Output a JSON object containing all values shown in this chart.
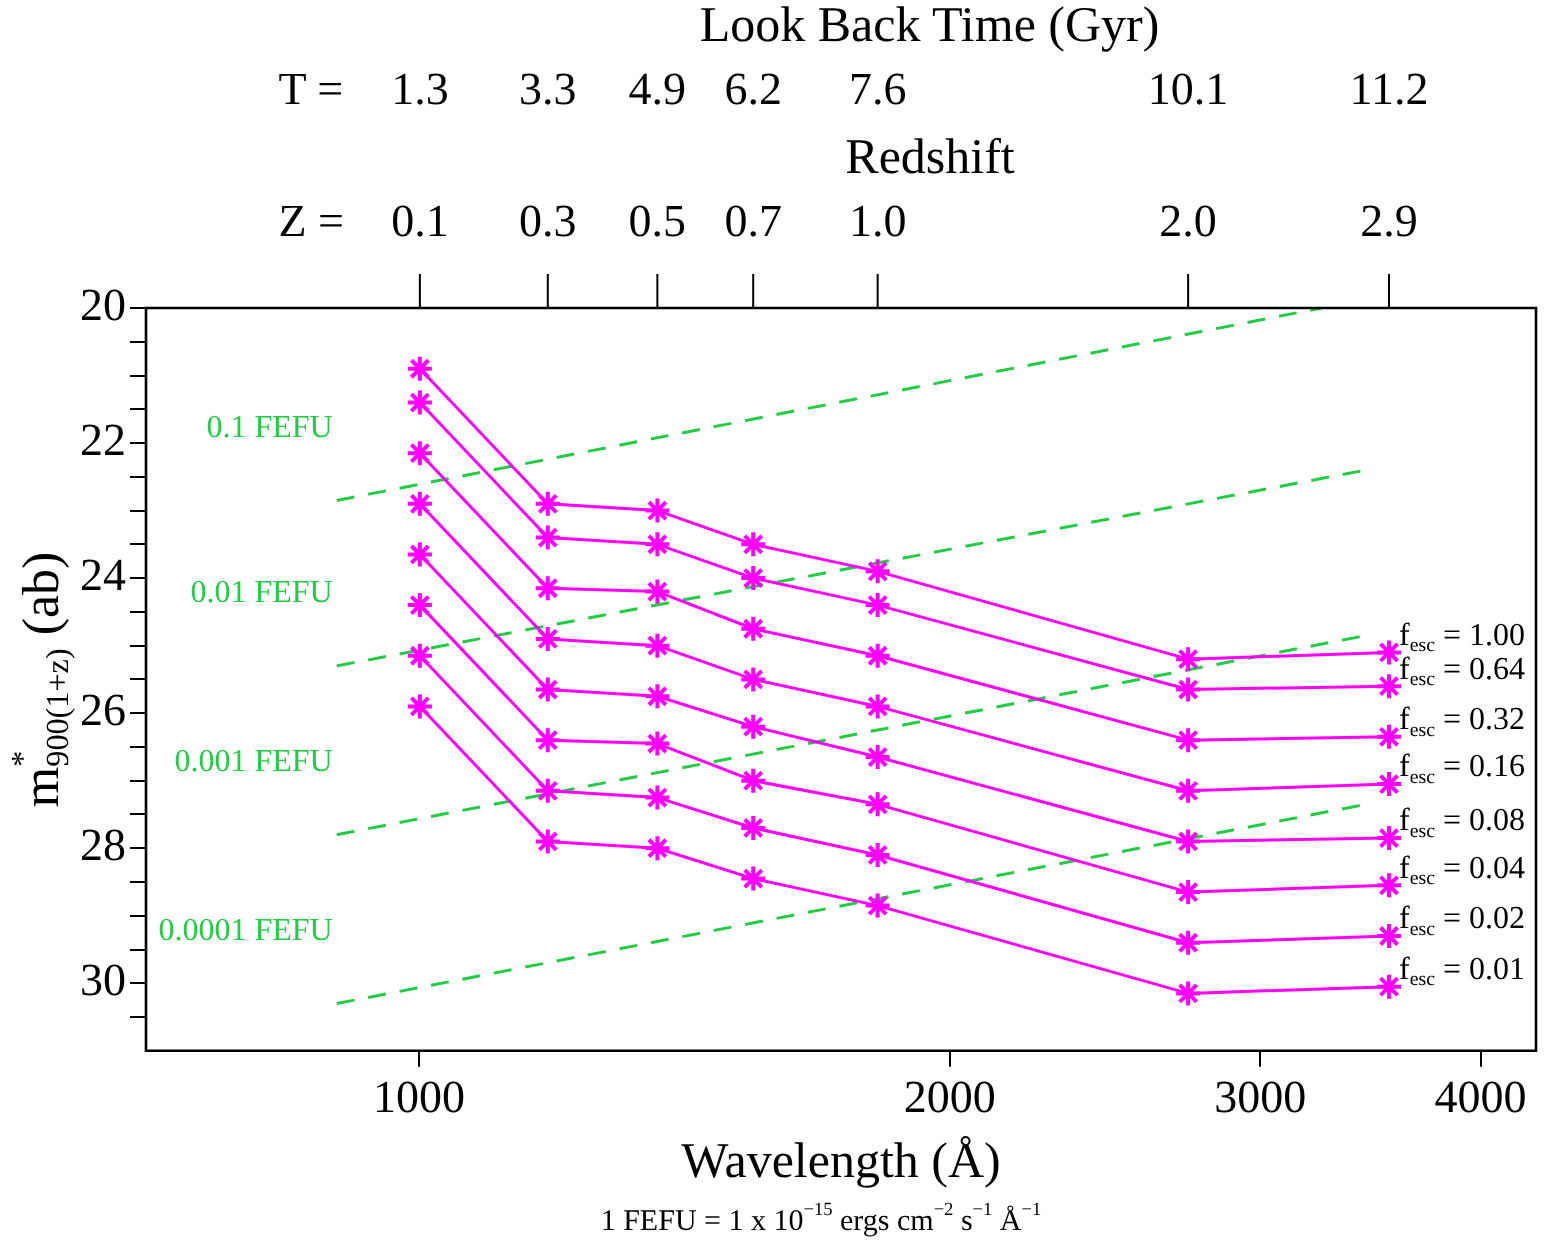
{
  "chart_data": {
    "type": "line",
    "xlabel": "Wavelength (Å)",
    "ylabel": "m$^{*}$$_{900(1+z)}$ (ab)",
    "annotations": [
      "Look Back Time (Gyr)",
      "T =",
      "1.3",
      "3.3",
      "4.9",
      "6.2",
      "7.6",
      "10.1",
      "11.2",
      "Redshift",
      "Z =",
      "0.1",
      "0.3",
      "0.5",
      "0.7",
      "1.0",
      "2.0",
      "2.9",
      "1 FEFU = 1 x 10$^{−15}$ ergs cm$^{−2}$ s$^{−1}$ Å$^{−1}$"
    ],
    "log": "x",
    "grid": false,
    "legend": false,
    "marker": "cross",
    "line_style": "solid",
    "xlim": [
      700,
      4300
    ],
    "xticks": [
      1000,
      2000,
      3000,
      4000
    ],
    "ylim": [
      31,
      20
    ],
    "yticks": [
      20,
      {
        "value": 20.5,
        "label": null
      },
      {
        "value": 21,
        "label": null
      },
      {
        "value": 21.5,
        "label": null
      },
      22,
      {
        "value": 22.5,
        "label": null
      },
      {
        "value": 23,
        "label": null
      },
      {
        "value": 23.5,
        "label": null
      },
      24,
      {
        "value": 24.5,
        "label": null
      },
      {
        "value": 25,
        "label": null
      },
      {
        "value": 25.5,
        "label": null
      },
      26,
      {
        "value": 26.5,
        "label": null
      },
      {
        "value": 27,
        "label": null
      },
      {
        "value": 27.5,
        "label": null
      },
      28,
      {
        "value": 28.5,
        "label": null
      },
      {
        "value": 29,
        "label": null
      },
      {
        "value": 29.5,
        "label": null
      },
      30,
      {
        "value": 30.5,
        "label": null
      }
    ],
    "x": [
      1001,
      1183,
      1365,
      1547,
      1820,
      2730,
      3549
    ],
    "series": [
      {
        "name": "f$_{esc}$ = 1.00",
        "color": "#ff00ff",
        "values": [
          20.9,
          22.9,
          23.0,
          23.5,
          23.9,
          25.2,
          25.1
        ]
      },
      {
        "name": "f$_{esc}$ = 0.64",
        "color": "#ff00ff",
        "values": [
          21.4,
          23.4,
          23.5,
          24.0,
          24.4,
          25.65,
          25.6
        ]
      },
      {
        "name": "f$_{esc}$ = 0.32",
        "color": "#ff00ff",
        "values": [
          22.15,
          24.15,
          24.2,
          24.75,
          25.15,
          26.4,
          26.35
        ]
      },
      {
        "name": "f$_{esc}$ = 0.16",
        "color": "#ff00ff",
        "values": [
          22.9,
          24.9,
          25.0,
          25.5,
          25.9,
          27.15,
          27.05
        ]
      },
      {
        "name": "f$_{esc}$ = 0.08",
        "color": "#ff00ff",
        "values": [
          23.65,
          25.65,
          25.75,
          26.2,
          26.65,
          27.9,
          27.85
        ]
      },
      {
        "name": "f$_{esc}$ = 0.04",
        "color": "#ff00ff",
        "values": [
          24.4,
          26.4,
          26.45,
          27.0,
          27.35,
          28.65,
          28.55
        ]
      },
      {
        "name": "f$_{esc}$ = 0.02",
        "color": "#ff00ff",
        "values": [
          25.15,
          27.15,
          27.25,
          27.7,
          28.1,
          29.4,
          29.3
        ]
      },
      {
        "name": "f$_{esc}$ = 0.01",
        "color": "#ff00ff",
        "values": [
          25.9,
          27.9,
          28.0,
          28.45,
          28.85,
          30.15,
          30.05
        ]
      },
      {
        "name": "0.1 FEFU",
        "color": "#22cc44",
        "marker": "none",
        "line_style": "dashed",
        "x": [
          898,
          3250
        ],
        "values": [
          22.85,
          20.0
        ]
      },
      {
        "name": "0.01 FEFU",
        "color": "#22cc44",
        "marker": "none",
        "line_style": "dashed",
        "x": [
          898,
          3443
        ],
        "values": [
          25.3,
          22.4
        ]
      },
      {
        "name": "0.001 FEFU",
        "color": "#22cc44",
        "marker": "none",
        "line_style": "dashed",
        "x": [
          898,
          3443
        ],
        "values": [
          27.8,
          24.85
        ]
      },
      {
        "name": "0.0001 FEFU",
        "color": "#22cc44",
        "marker": "none",
        "line_style": "dashed",
        "x": [
          898,
          3443
        ],
        "values": [
          30.3,
          27.35
        ]
      }
    ]
  }
}
